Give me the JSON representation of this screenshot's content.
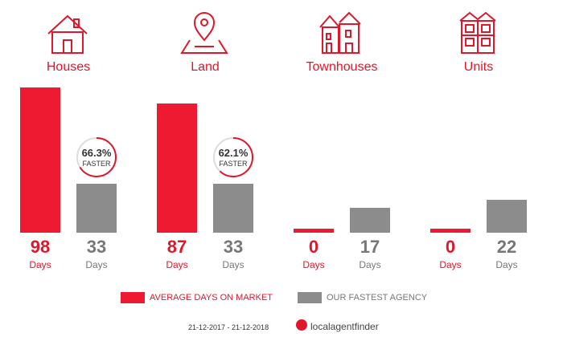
{
  "chart_data": {
    "type": "bar",
    "categories": [
      "Houses",
      "Land",
      "Townhouses",
      "Units"
    ],
    "series": [
      {
        "name": "AVERAGE DAYS ON MARKET",
        "values": [
          98,
          87,
          0,
          0
        ]
      },
      {
        "name": "OUR FASTEST AGENCY",
        "values": [
          33,
          33,
          17,
          22
        ]
      }
    ],
    "unit_label": "Days",
    "badges": [
      {
        "category": "Houses",
        "percent": "66.3%",
        "word": "FASTER",
        "fraction": 0.663
      },
      {
        "category": "Land",
        "percent": "62.1%",
        "word": "FASTER",
        "fraction": 0.621
      }
    ],
    "ylim": [
      0,
      98
    ],
    "colors": {
      "market": "#ee1a31",
      "agency": "#8c8c8c",
      "accent": "#e0172b"
    },
    "legend": {
      "placement": "bottom"
    }
  },
  "icons": [
    "house-icon",
    "map-pin-icon",
    "townhouses-icon",
    "units-icon"
  ],
  "footer": {
    "date_range": "21-12-2017 - 21-12-2018",
    "brand": "localagentfinder"
  }
}
